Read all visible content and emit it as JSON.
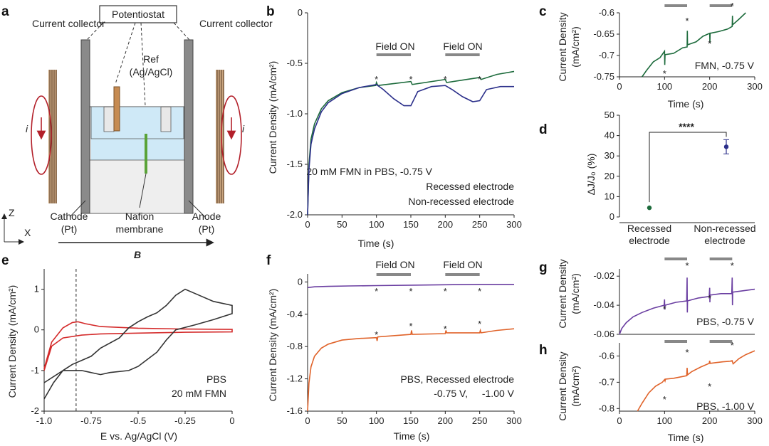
{
  "panel_letters": [
    "a",
    "b",
    "c",
    "d",
    "e",
    "f",
    "g",
    "h"
  ],
  "schematic": {
    "potentiostat": "Potentiostat",
    "current_collector": "Current collector",
    "ref_line1": "Ref",
    "ref_line2": "(Ag/AgCl)",
    "cathode_line1": "Cathode",
    "cathode_line2": "(Pt)",
    "nafion_line1": "Nafion",
    "nafion_line2": "membrane",
    "anode_line1": "Anode",
    "anode_line2": "(Pt)",
    "current_symbol": "i",
    "axis_z": "Z",
    "axis_x": "X",
    "field": "B"
  },
  "colors": {
    "green": "#1d6b3c",
    "navy": "#2b2f8a",
    "red": "#d42a2a",
    "grey": "#333333",
    "orange": "#e0632a",
    "purple": "#6a3ea1",
    "bar": "#888888"
  },
  "chart_data": [
    {
      "id": "b",
      "type": "line",
      "xlabel": "Time (s)",
      "ylabel": "Current Density (mA/cm²)",
      "xlim": [
        0,
        300
      ],
      "ylim": [
        -2.0,
        0
      ],
      "xticks": [
        0,
        50,
        100,
        150,
        200,
        250,
        300
      ],
      "yticks": [
        0,
        -0.5,
        -1.0,
        -1.5,
        -2.0
      ],
      "ytick_labels": [
        "0",
        "-0.5",
        "-1.0",
        "-1.5",
        "-2.0"
      ],
      "field_on_label": "Field ON",
      "field_on_intervals": [
        [
          100,
          150
        ],
        [
          200,
          250
        ]
      ],
      "marker": "*",
      "marker_x": [
        100,
        150,
        200,
        250
      ],
      "annotation": "20 mM FMN in PBS, -0.75 V",
      "series": [
        {
          "name": "Recessed electrode",
          "color": "#1d6b3c",
          "x": [
            0,
            2,
            5,
            10,
            20,
            30,
            50,
            75,
            99,
            100,
            102,
            150,
            152,
            200,
            202,
            250,
            252,
            275,
            300
          ],
          "y": [
            -2.0,
            -1.5,
            -1.25,
            -1.1,
            -0.95,
            -0.87,
            -0.79,
            -0.74,
            -0.72,
            -0.69,
            -0.72,
            -0.68,
            -0.71,
            -0.66,
            -0.69,
            -0.64,
            -0.66,
            -0.61,
            -0.58
          ]
        },
        {
          "name": "Non-recessed electrode",
          "color": "#2b2f8a",
          "x": [
            0,
            2,
            5,
            10,
            20,
            30,
            50,
            75,
            100,
            110,
            125,
            140,
            150,
            160,
            180,
            200,
            210,
            225,
            240,
            250,
            260,
            280,
            300
          ],
          "y": [
            -2.0,
            -1.55,
            -1.3,
            -1.15,
            -0.98,
            -0.89,
            -0.8,
            -0.74,
            -0.71,
            -0.76,
            -0.85,
            -0.92,
            -0.92,
            -0.78,
            -0.73,
            -0.72,
            -0.76,
            -0.83,
            -0.88,
            -0.87,
            -0.76,
            -0.73,
            -0.73
          ]
        }
      ]
    },
    {
      "id": "c",
      "type": "line",
      "xlabel": "Time (s)",
      "ylabel_line1": "Current Density",
      "ylabel_line2": "(mA/cm²)",
      "xlim": [
        0,
        300
      ],
      "ylim": [
        -0.75,
        -0.6
      ],
      "xticks": [
        0,
        100,
        200,
        300
      ],
      "yticks": [
        -0.6,
        -0.65,
        -0.7,
        -0.75
      ],
      "ytick_labels": [
        "-0.6",
        "-0.65",
        "-0.7",
        "-0.75"
      ],
      "field_on_intervals": [
        [
          100,
          150
        ],
        [
          200,
          250
        ]
      ],
      "marker": "*",
      "marker_x": [
        100,
        150,
        200,
        250
      ],
      "annotation": "FMN, -0.75 V",
      "series": [
        {
          "name": "FMN -0.75 V",
          "color": "#1d6b3c",
          "x": [
            50,
            60,
            75,
            90,
            100,
            100.5,
            101,
            120,
            140,
            150,
            150.5,
            151,
            170,
            185,
            200,
            200.5,
            201,
            220,
            240,
            250,
            250.5,
            251,
            265,
            280
          ],
          "y": [
            -0.75,
            -0.735,
            -0.715,
            -0.705,
            -0.69,
            -0.722,
            -0.698,
            -0.695,
            -0.682,
            -0.68,
            -0.642,
            -0.675,
            -0.668,
            -0.655,
            -0.648,
            -0.67,
            -0.648,
            -0.644,
            -0.638,
            -0.632,
            -0.607,
            -0.628,
            -0.615,
            -0.6
          ]
        }
      ]
    },
    {
      "id": "d",
      "type": "scatter",
      "ylabel": "ΔJ/J₀ (%)",
      "ylim": [
        0,
        50
      ],
      "yticks": [
        0,
        10,
        20,
        30,
        40,
        50
      ],
      "categories": [
        "Recessed electrode",
        "Non-recessed electrode"
      ],
      "category_line1": [
        "Recessed",
        "Non-recessed"
      ],
      "category_line2": [
        "electrode",
        "electrode"
      ],
      "values": [
        4.5,
        34.5
      ],
      "errors": [
        0,
        3.5
      ],
      "colors": [
        "#1d6b3c",
        "#2b2f8a"
      ],
      "significance": "****"
    },
    {
      "id": "e",
      "type": "line",
      "xlabel": "E vs. Ag/AgCl (V)",
      "ylabel": "Current Density (mA/cm²)",
      "xlim": [
        -1.0,
        0
      ],
      "ylim": [
        -2,
        1.5
      ],
      "xticks": [
        -1.0,
        -0.75,
        -0.5,
        -0.25,
        0
      ],
      "xtick_labels": [
        "-1.0",
        "-0.75",
        "-0.5",
        "-0.25",
        "0"
      ],
      "yticks": [
        1,
        0,
        -1,
        -2
      ],
      "ytick_labels": [
        "1",
        "0",
        "-1",
        "-2"
      ],
      "vline_x": -0.83,
      "legend": [
        "PBS",
        "20 mM FMN"
      ],
      "series": [
        {
          "name": "PBS",
          "color": "#d42a2a",
          "x": [
            -1.0,
            -0.96,
            -0.9,
            -0.85,
            -0.82,
            -0.78,
            -0.7,
            -0.5,
            -0.25,
            0,
            0,
            -0.25,
            -0.5,
            -0.7,
            -0.8,
            -0.9,
            -0.96,
            -1.0
          ],
          "y": [
            -0.95,
            -0.3,
            0.05,
            0.18,
            0.2,
            0.15,
            0.08,
            0.04,
            0.02,
            0.01,
            -0.05,
            -0.06,
            -0.08,
            -0.1,
            -0.13,
            -0.2,
            -0.4,
            -1.0
          ]
        },
        {
          "name": "20 mM FMN",
          "color": "#333333",
          "x": [
            -1.0,
            -0.95,
            -0.9,
            -0.85,
            -0.8,
            -0.75,
            -0.7,
            -0.6,
            -0.55,
            -0.5,
            -0.45,
            -0.4,
            -0.35,
            -0.3,
            -0.25,
            -0.2,
            -0.1,
            0,
            0,
            -0.1,
            -0.2,
            -0.3,
            -0.35,
            -0.4,
            -0.5,
            -0.55,
            -0.65,
            -0.7,
            -0.8,
            -0.9,
            -1.0
          ],
          "y": [
            -1.7,
            -1.3,
            -1.0,
            -0.85,
            -0.75,
            -0.65,
            -0.45,
            -0.2,
            0.05,
            0.2,
            0.32,
            0.42,
            0.6,
            0.85,
            1.0,
            0.9,
            0.7,
            0.6,
            0.4,
            0.25,
            0.12,
            0.0,
            -0.25,
            -0.55,
            -0.9,
            -1.0,
            -1.05,
            -1.1,
            -1.0,
            -1.0,
            -1.3
          ]
        }
      ]
    },
    {
      "id": "f",
      "type": "line",
      "xlabel": "Time (s)",
      "ylabel": "Current Density (mA/cm²)",
      "xlim": [
        0,
        300
      ],
      "ylim": [
        -1.6,
        0.1
      ],
      "xticks": [
        0,
        50,
        100,
        150,
        200,
        250,
        300
      ],
      "yticks": [
        0,
        -0.4,
        -0.8,
        -1.2,
        -1.6
      ],
      "ytick_labels": [
        "0",
        "-0.4",
        "-0.8",
        "-1.2",
        "-1.6"
      ],
      "field_on_label": "Field ON",
      "field_on_intervals": [
        [
          100,
          150
        ],
        [
          200,
          250
        ]
      ],
      "marker": "*",
      "marker_x": [
        100,
        150,
        200,
        250
      ],
      "annotation": "PBS, Recessed electrode",
      "legend_purple": "-0.75 V,",
      "legend_orange": "-1.00 V",
      "series": [
        {
          "name": "-0.75 V",
          "color": "#6a3ea1",
          "x": [
            0,
            10,
            30,
            60,
            100,
            150,
            200,
            250,
            300
          ],
          "y": [
            -0.07,
            -0.06,
            -0.055,
            -0.05,
            -0.045,
            -0.04,
            -0.035,
            -0.03,
            -0.03
          ]
        },
        {
          "name": "-1.00 V",
          "color": "#e0632a",
          "x": [
            0,
            2,
            5,
            10,
            20,
            30,
            50,
            75,
            100,
            101,
            102,
            150,
            151,
            152,
            200,
            201,
            202,
            250,
            251,
            252,
            275,
            300
          ],
          "y": [
            -1.6,
            -1.25,
            -1.05,
            -0.92,
            -0.82,
            -0.77,
            -0.72,
            -0.7,
            -0.69,
            -0.73,
            -0.68,
            -0.65,
            -0.6,
            -0.65,
            -0.64,
            -0.6,
            -0.63,
            -0.63,
            -0.6,
            -0.63,
            -0.6,
            -0.58
          ]
        }
      ]
    },
    {
      "id": "g",
      "type": "line",
      "xlabel": "",
      "ylabel_line1": "Current Density",
      "ylabel_line2": "(mA/cm²)",
      "xlim": [
        0,
        300
      ],
      "ylim": [
        -0.06,
        -0.015
      ],
      "yticks": [
        -0.02,
        -0.04,
        -0.06
      ],
      "ytick_labels": [
        "-0.02",
        "-0.04",
        "-0.06"
      ],
      "field_on_intervals": [
        [
          100,
          150
        ],
        [
          200,
          250
        ]
      ],
      "marker": "*",
      "marker_x": [
        100,
        150,
        200,
        250
      ],
      "annotation": "PBS, -0.75 V",
      "series": [
        {
          "name": "PBS -0.75 V",
          "color": "#6a3ea1",
          "x": [
            0,
            5,
            15,
            30,
            50,
            75,
            99,
            100,
            100.5,
            101,
            125,
            149,
            150,
            150.5,
            151,
            175,
            199,
            200,
            200.5,
            201,
            225,
            249,
            250,
            250.5,
            251,
            275,
            300
          ],
          "y": [
            -0.06,
            -0.056,
            -0.052,
            -0.048,
            -0.045,
            -0.042,
            -0.04,
            -0.036,
            -0.043,
            -0.04,
            -0.038,
            -0.037,
            -0.021,
            -0.045,
            -0.037,
            -0.035,
            -0.034,
            -0.028,
            -0.038,
            -0.033,
            -0.032,
            -0.032,
            -0.021,
            -0.04,
            -0.031,
            -0.03,
            -0.029
          ]
        }
      ]
    },
    {
      "id": "h",
      "type": "line",
      "xlabel": "Time (s)",
      "ylabel_line1": "Current Density",
      "ylabel_line2": "(mA/cm²)",
      "xlim": [
        0,
        300
      ],
      "ylim": [
        -0.81,
        -0.55
      ],
      "xticks": [
        0,
        100,
        200,
        300
      ],
      "yticks": [
        -0.6,
        -0.7,
        -0.8
      ],
      "ytick_labels": [
        "-0.6",
        "-0.7",
        "-0.8"
      ],
      "field_on_intervals": [
        [
          100,
          150
        ],
        [
          200,
          250
        ]
      ],
      "marker": "*",
      "marker_x": [
        100,
        150,
        200,
        250
      ],
      "annotation": "PBS, -1.00 V",
      "series": [
        {
          "name": "PBS -1.00 V",
          "color": "#e0632a",
          "x": [
            40,
            50,
            65,
            80,
            95,
            100,
            101,
            102,
            120,
            140,
            149,
            150,
            151,
            160,
            180,
            199,
            200,
            201,
            215,
            230,
            245,
            250,
            252,
            265,
            280,
            300
          ],
          "y": [
            -0.81,
            -0.78,
            -0.74,
            -0.715,
            -0.7,
            -0.69,
            -0.695,
            -0.688,
            -0.685,
            -0.678,
            -0.675,
            -0.645,
            -0.672,
            -0.66,
            -0.642,
            -0.628,
            -0.618,
            -0.628,
            -0.625,
            -0.622,
            -0.62,
            -0.618,
            -0.63,
            -0.61,
            -0.595,
            -0.58
          ]
        }
      ]
    }
  ]
}
